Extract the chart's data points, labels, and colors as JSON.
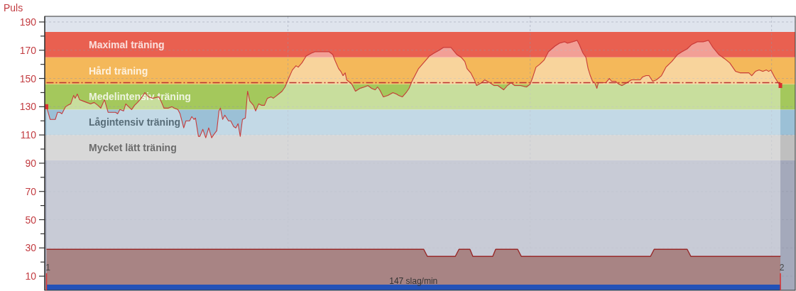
{
  "chart_data": {
    "type": "area",
    "ylabel": "Puls",
    "xlim": [
      0.9976,
      2.0203
    ],
    "xticks": [
      1,
      {
        "value": 1.329,
        "label": null
      },
      {
        "value": 1.659,
        "label": null
      },
      {
        "value": 1.988,
        "label": null
      },
      2
    ],
    "ylim": [
      0,
      194
    ],
    "yticks": [
      10,
      {
        "value": 20,
        "label": null
      },
      30,
      {
        "value": 40,
        "label": null
      },
      50,
      {
        "value": 60,
        "label": null
      },
      70,
      {
        "value": 80,
        "label": null
      },
      90,
      {
        "value": 100,
        "label": null
      },
      110,
      {
        "value": 120,
        "label": null
      },
      130,
      {
        "value": 140,
        "label": null
      },
      150,
      {
        "value": 160,
        "label": null
      },
      170,
      {
        "value": 180,
        "label": null
      },
      190
    ],
    "grid": true,
    "series": [
      {
        "type": "line",
        "color": "#c83c3c",
        "x": [
          1,
          1.005,
          1.012,
          1.015,
          1.018,
          1.021,
          1.026,
          1.029,
          1.033,
          1.037,
          1.039,
          1.042,
          1.045,
          1.05,
          1.055,
          1.06,
          1.065,
          1.07,
          1.074,
          1.079,
          1.084,
          1.087,
          1.094,
          1.097,
          1.1,
          1.105,
          1.108,
          1.112,
          1.116,
          1.12,
          1.124,
          1.129,
          1.134,
          1.139,
          1.145,
          1.153,
          1.156,
          1.16,
          1.166,
          1.171,
          1.174,
          1.179,
          1.182,
          1.187,
          1.19,
          1.195,
          1.198,
          1.201,
          1.203,
          1.207,
          1.209,
          1.213,
          1.217,
          1.221,
          1.225,
          1.229,
          1.232,
          1.235,
          1.237,
          1.24,
          1.243,
          1.248,
          1.251,
          1.255,
          1.258,
          1.261,
          1.264,
          1.267,
          1.271,
          1.274,
          1.277,
          1.282,
          1.285,
          1.289,
          1.293,
          1.297,
          1.301,
          1.306,
          1.309,
          1.314,
          1.321,
          1.325,
          1.329,
          1.335,
          1.34,
          1.343,
          1.348,
          1.354,
          1.361,
          1.366,
          1.385,
          1.39,
          1.393,
          1.398,
          1.401,
          1.404,
          1.407,
          1.409,
          1.416,
          1.421,
          1.424,
          1.427,
          1.433,
          1.438,
          1.443,
          1.448,
          1.451,
          1.454,
          1.459,
          1.465,
          1.472,
          1.477,
          1.48,
          1.485,
          1.49,
          1.494,
          1.498,
          1.503,
          1.507,
          1.512,
          1.517,
          1.522,
          1.528,
          1.535,
          1.541,
          1.551,
          1.559,
          1.565,
          1.57,
          1.573,
          1.578,
          1.583,
          1.586,
          1.593,
          1.597,
          1.604,
          1.61,
          1.615,
          1.623,
          1.628,
          1.633,
          1.638,
          1.646,
          1.654,
          1.659,
          1.662,
          1.667,
          1.672,
          1.678,
          1.684,
          1.693,
          1.699,
          1.706,
          1.71,
          1.717,
          1.723,
          1.726,
          1.731,
          1.735,
          1.738,
          1.741,
          1.744,
          1.747,
          1.75,
          1.752,
          1.757,
          1.762,
          1.767,
          1.77,
          1.775,
          1.78,
          1.784,
          1.791,
          1.797,
          1.809,
          1.812,
          1.817,
          1.821,
          1.826,
          1.831,
          1.838,
          1.844,
          1.852,
          1.86,
          1.866,
          1.873,
          1.879,
          1.887,
          1.895,
          1.902,
          1.908,
          1.916,
          1.924,
          1.931,
          1.939,
          1.945,
          1.957,
          1.961,
          1.966,
          1.971,
          1.976,
          1.981,
          1.984,
          1.987,
          1.992,
          1.997,
          2
        ],
        "values": [
          130,
          121,
          121,
          126,
          126,
          125,
          130,
          131,
          132,
          138,
          136,
          139,
          135,
          134,
          133,
          132,
          133,
          131,
          129,
          135,
          126,
          126,
          126,
          125,
          128,
          127,
          132,
          130,
          128,
          131,
          133,
          136,
          140,
          137,
          136,
          137,
          134,
          129,
          129,
          130,
          129,
          128,
          125,
          115,
          120,
          120,
          123,
          121,
          122,
          109,
          109,
          114,
          108,
          115,
          108,
          111,
          113,
          127,
          129,
          121,
          124,
          120,
          120,
          116,
          115,
          118,
          109,
          121,
          122,
          141,
          134,
          131,
          127,
          132,
          131,
          131,
          136,
          137,
          136,
          138,
          141,
          144,
          149,
          156,
          159,
          158,
          161,
          166,
          168,
          169,
          169,
          167,
          163,
          157,
          155,
          152,
          154,
          149,
          146,
          141,
          142,
          143,
          144,
          145,
          143,
          142,
          144,
          142,
          137,
          138,
          140,
          139,
          138,
          137,
          140,
          143,
          148,
          153,
          157,
          160,
          163,
          166,
          168,
          170,
          172,
          172,
          167,
          165,
          162,
          157,
          154,
          149,
          145,
          147,
          149,
          147,
          145,
          145,
          142,
          145,
          147,
          145,
          145,
          144,
          146,
          150,
          158,
          160,
          163,
          169,
          173,
          175,
          176,
          175,
          176,
          177,
          174,
          168,
          165,
          157,
          152,
          148,
          147,
          143,
          147,
          147,
          147,
          150,
          148,
          148,
          146,
          145,
          147,
          149,
          149,
          151,
          152,
          152,
          148,
          149,
          152,
          158,
          162,
          167,
          169,
          171,
          174,
          176,
          176,
          177,
          172,
          167,
          164,
          161,
          155,
          154,
          154,
          152,
          155,
          156,
          155,
          156,
          155,
          156,
          151,
          147,
          145
        ]
      },
      {
        "color": "#a88484",
        "x": [
          1,
          1.514,
          1.519,
          1.557,
          1.562,
          1.577,
          1.581,
          1.608,
          1.612,
          1.642,
          1.647,
          1.823,
          1.828,
          1.873,
          1.878,
          2
        ],
        "values": [
          29,
          29,
          24,
          24,
          29,
          29,
          24,
          24,
          29,
          29,
          24,
          24,
          29,
          29,
          24,
          24
        ]
      },
      {
        "color": "#2352b8",
        "x": [
          1,
          2
        ],
        "values": [
          4,
          4
        ]
      }
    ],
    "bands": [
      {
        "axis": "y",
        "from": 0,
        "to": 92,
        "color": "#a4a9bb"
      },
      {
        "axis": "y",
        "from": 92,
        "to": 110,
        "label": "Mycket lätt träning",
        "color": "#bfbfbf"
      },
      {
        "axis": "y",
        "from": 110,
        "to": 128,
        "label": "Lågintensiv träning",
        "color": "#9bc0d6"
      },
      {
        "axis": "y",
        "from": 128,
        "to": 146,
        "label": "Medelintensiv träning",
        "color": "#a4c85c"
      },
      {
        "axis": "y",
        "from": 146,
        "to": 165,
        "label": "Hård träning",
        "color": "#f4b85a"
      },
      {
        "axis": "y",
        "from": 165,
        "to": 183,
        "label": "Maximal träning",
        "color": "#e96050"
      },
      {
        "axis": "y",
        "from": 183,
        "to": 194,
        "color": "#dfe4ed"
      }
    ],
    "ref_lines": [
      {
        "axis": "y",
        "value": 147,
        "color": "#b83232",
        "line_style": "dashed"
      }
    ],
    "annotations": [
      "147 slag/min"
    ]
  }
}
